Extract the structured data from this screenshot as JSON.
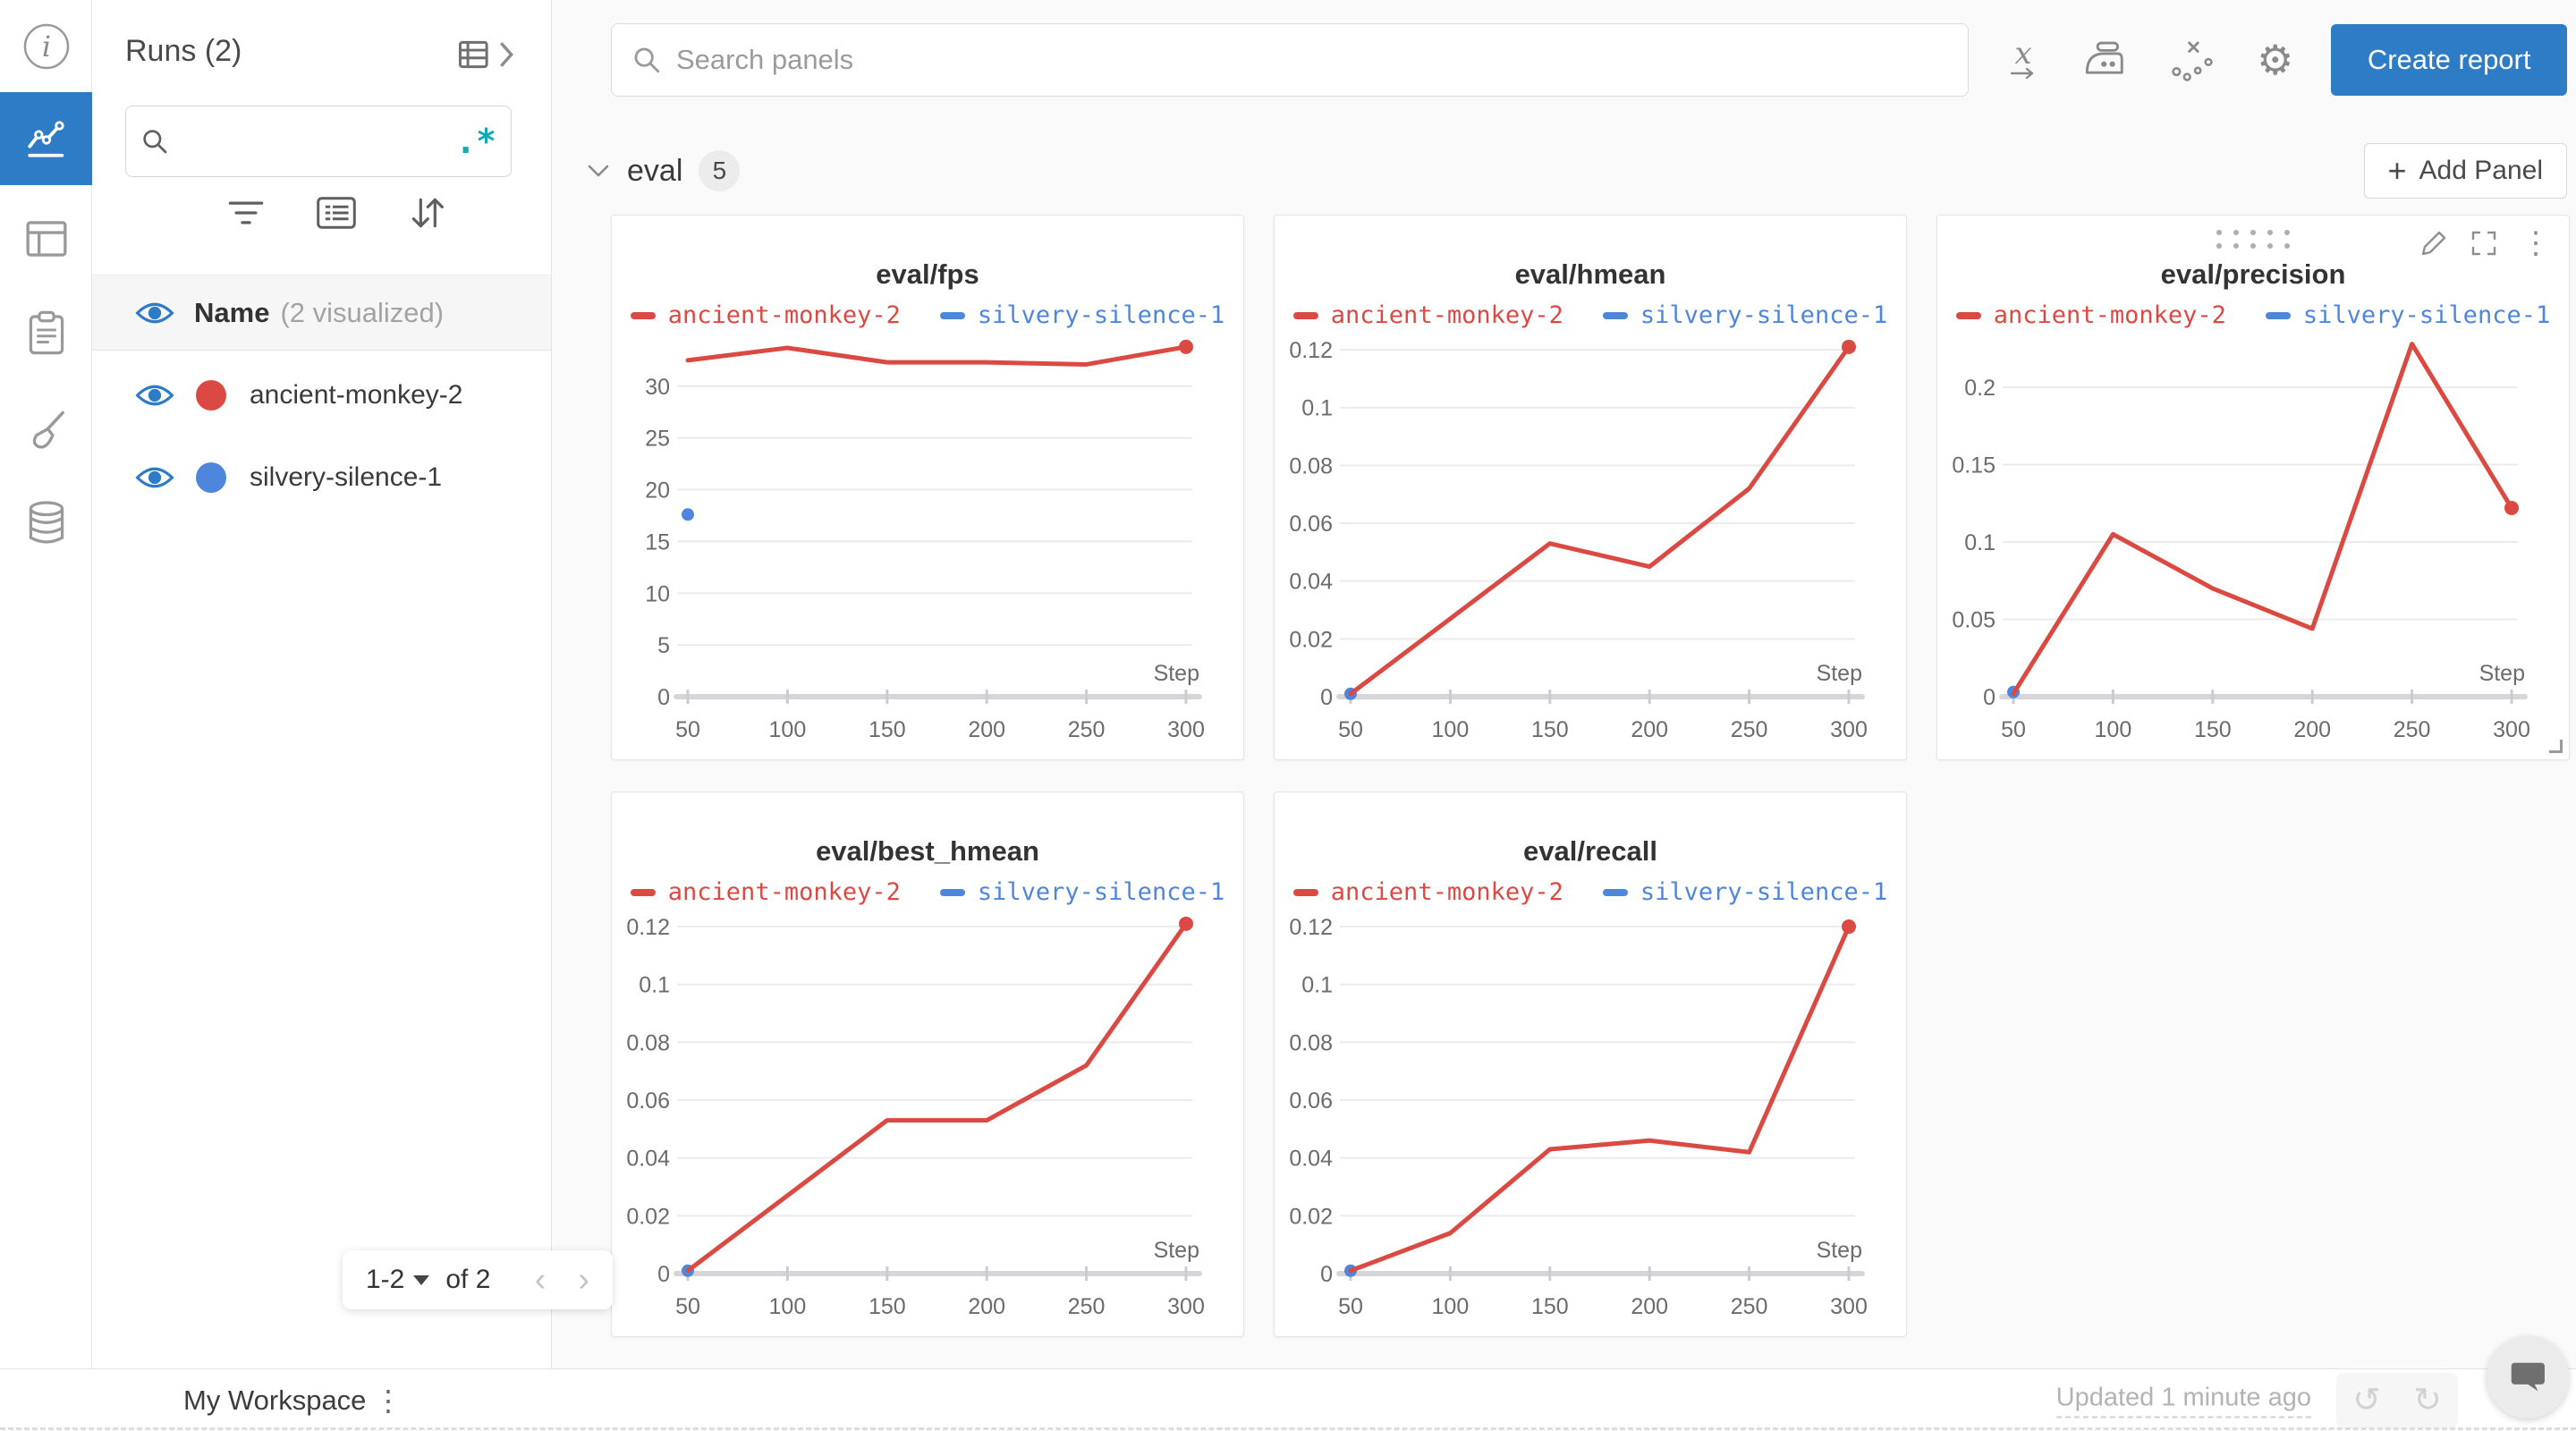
{
  "icon_rail": {
    "items": [
      {
        "name": "info",
        "active": false
      },
      {
        "name": "line-charts",
        "active": true
      },
      {
        "name": "table",
        "active": false
      },
      {
        "name": "clipboard-logs",
        "active": false
      },
      {
        "name": "sweep-broom",
        "active": false
      },
      {
        "name": "database-artifacts",
        "active": false
      }
    ]
  },
  "sidebar": {
    "title": "Runs (2)",
    "search_placeholder": "",
    "regex_label": ".*",
    "header": {
      "label": "Name",
      "suffix": "(2 visualized)"
    },
    "runs": [
      {
        "name": "ancient-monkey-2",
        "color": "#DB4A42"
      },
      {
        "name": "silvery-silence-1",
        "color": "#4E86DB"
      }
    ],
    "pagination": {
      "range": "1-2",
      "of": "of 2"
    }
  },
  "toolbar": {
    "search_placeholder": "Search panels",
    "create_report": "Create report"
  },
  "section": {
    "title": "eval",
    "count": "5",
    "add_panel_label": "Add Panel",
    "add_plus": "+"
  },
  "footer": {
    "workspace": "My Workspace",
    "updated": "Updated 1 minute ago",
    "undo_glyph": "↺",
    "redo_glyph": "↻"
  },
  "glyphs": {
    "kebab": "⋮",
    "gear": "⚙",
    "chevron_left": "‹",
    "chevron_right": "›"
  },
  "colors": {
    "accent_blue": "#2E7BC6",
    "run_red": "#DB4A42",
    "run_blue": "#4E86DB",
    "regex_teal": "#12A9B4"
  },
  "chart_data": [
    {
      "type": "line",
      "title": "eval/fps",
      "xlabel": "Step",
      "x_ticks": [
        50,
        100,
        150,
        200,
        250,
        300
      ],
      "y_ticks": [
        0,
        5,
        10,
        15,
        20,
        25,
        30
      ],
      "y_tick_labels": [
        "0",
        "5",
        "10",
        "15",
        "20",
        "25",
        "30"
      ],
      "ylim": [
        0,
        34.3
      ],
      "hovered": false,
      "series": [
        {
          "name": "silvery-silence-1",
          "color": "#4E86DB",
          "x": [
            50
          ],
          "y": [
            17.6
          ],
          "point_only": true
        },
        {
          "name": "ancient-monkey-2",
          "color": "#DB4A42",
          "x": [
            50,
            100,
            150,
            200,
            250,
            300
          ],
          "y": [
            32.5,
            33.7,
            32.3,
            32.3,
            32.1,
            33.8
          ],
          "endpoint_dot": true
        }
      ]
    },
    {
      "type": "line",
      "title": "eval/hmean",
      "xlabel": "Step",
      "x_ticks": [
        50,
        100,
        150,
        200,
        250,
        300
      ],
      "y_ticks": [
        0,
        0.02,
        0.04,
        0.06,
        0.08,
        0.1,
        0.12
      ],
      "y_tick_labels": [
        "0",
        "0.02",
        "0.04",
        "0.06",
        "0.08",
        "0.1",
        "0.12"
      ],
      "ylim": [
        0,
        0.1228
      ],
      "hovered": false,
      "series": [
        {
          "name": "silvery-silence-1",
          "color": "#4E86DB",
          "x": [
            50
          ],
          "y": [
            0.001
          ],
          "point_only": true
        },
        {
          "name": "ancient-monkey-2",
          "color": "#DB4A42",
          "x": [
            50,
            100,
            150,
            200,
            250,
            300
          ],
          "y": [
            0.001,
            0.027,
            0.053,
            0.045,
            0.072,
            0.121
          ],
          "endpoint_dot": true
        }
      ]
    },
    {
      "type": "line",
      "title": "eval/precision",
      "xlabel": "Step",
      "x_ticks": [
        50,
        100,
        150,
        200,
        250,
        300
      ],
      "y_ticks": [
        0,
        0.05,
        0.1,
        0.15,
        0.2
      ],
      "y_tick_labels": [
        "0",
        "0.05",
        "0.1",
        "0.15",
        "0.2"
      ],
      "ylim": [
        0,
        0.2295
      ],
      "hovered": true,
      "series": [
        {
          "name": "silvery-silence-1",
          "color": "#4E86DB",
          "x": [
            50
          ],
          "y": [
            0.003
          ],
          "point_only": true
        },
        {
          "name": "ancient-monkey-2",
          "color": "#DB4A42",
          "x": [
            50,
            100,
            150,
            200,
            250,
            300
          ],
          "y": [
            0.002,
            0.105,
            0.07,
            0.044,
            0.228,
            0.122
          ],
          "endpoint_dot": true
        }
      ]
    },
    {
      "type": "line",
      "title": "eval/best_hmean",
      "xlabel": "Step",
      "x_ticks": [
        50,
        100,
        150,
        200,
        250,
        300
      ],
      "y_ticks": [
        0,
        0.02,
        0.04,
        0.06,
        0.08,
        0.1,
        0.12
      ],
      "y_tick_labels": [
        "0",
        "0.02",
        "0.04",
        "0.06",
        "0.08",
        "0.1",
        "0.12"
      ],
      "ylim": [
        0,
        0.1228
      ],
      "hovered": false,
      "series": [
        {
          "name": "silvery-silence-1",
          "color": "#4E86DB",
          "x": [
            50
          ],
          "y": [
            0.001
          ],
          "point_only": true
        },
        {
          "name": "ancient-monkey-2",
          "color": "#DB4A42",
          "x": [
            50,
            100,
            150,
            200,
            250,
            300
          ],
          "y": [
            0.001,
            0.027,
            0.053,
            0.053,
            0.072,
            0.121
          ],
          "endpoint_dot": true
        }
      ]
    },
    {
      "type": "line",
      "title": "eval/recall",
      "xlabel": "Step",
      "x_ticks": [
        50,
        100,
        150,
        200,
        250,
        300
      ],
      "y_ticks": [
        0,
        0.02,
        0.04,
        0.06,
        0.08,
        0.1,
        0.12
      ],
      "y_tick_labels": [
        "0",
        "0.02",
        "0.04",
        "0.06",
        "0.08",
        "0.1",
        "0.12"
      ],
      "ylim": [
        0,
        0.1228
      ],
      "hovered": false,
      "series": [
        {
          "name": "silvery-silence-1",
          "color": "#4E86DB",
          "x": [
            50
          ],
          "y": [
            0.001
          ],
          "point_only": true
        },
        {
          "name": "ancient-monkey-2",
          "color": "#DB4A42",
          "x": [
            50,
            100,
            150,
            200,
            250,
            300
          ],
          "y": [
            0.001,
            0.014,
            0.043,
            0.046,
            0.042,
            0.12
          ],
          "endpoint_dot": true
        }
      ]
    }
  ]
}
